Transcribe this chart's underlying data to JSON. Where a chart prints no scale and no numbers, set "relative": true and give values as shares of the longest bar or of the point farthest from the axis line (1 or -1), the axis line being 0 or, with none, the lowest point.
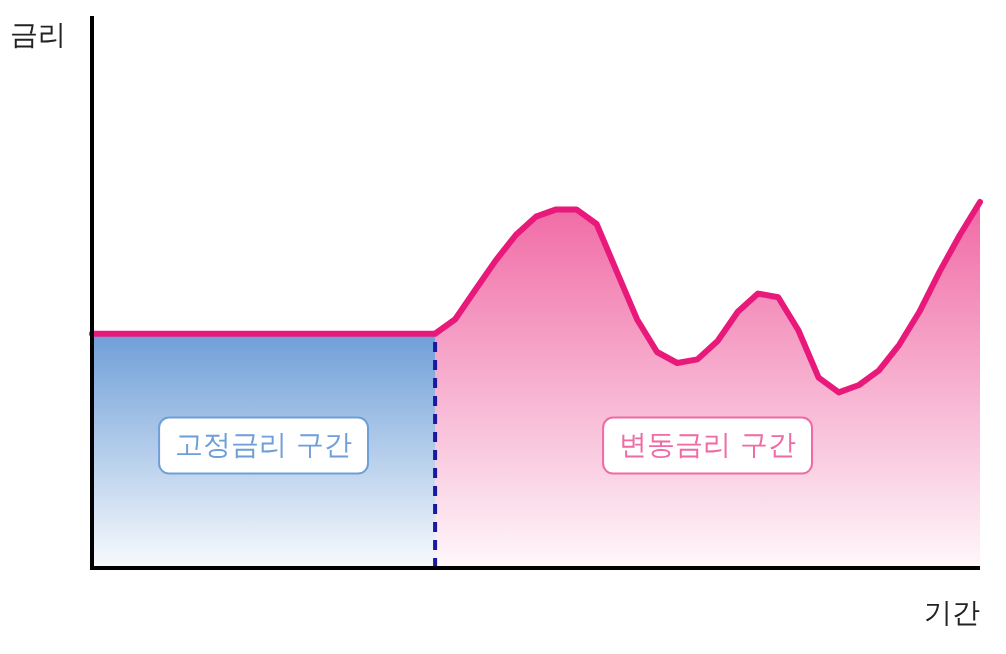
{
  "chart_data": {
    "type": "area",
    "relative": true,
    "annotations": [
      "금리"
    ],
    "xlabel": "기간",
    "categories": [
      null,
      null,
      null,
      null,
      null,
      null,
      null,
      null,
      null,
      null,
      null,
      null,
      null,
      null,
      null,
      null,
      null,
      null,
      null,
      null,
      null,
      null,
      null,
      null,
      null,
      null,
      null,
      null,
      null,
      null,
      null,
      null,
      null,
      null,
      null,
      null,
      null,
      null,
      null,
      null,
      null,
      null,
      null,
      null,
      null
    ],
    "series": [
      {
        "name": "고정금리 구간",
        "color": "#6f9fd8",
        "values": [
          0.64,
          0.64,
          0.64,
          0.64,
          0.64,
          0.64,
          0.64,
          0.64,
          0.64,
          0.64,
          0.64,
          0.64,
          0.64,
          0.64,
          0.64,
          0.64,
          0.64,
          0.64,
          null,
          null,
          null,
          null,
          null,
          null,
          null,
          null,
          null,
          null,
          null,
          null,
          null,
          null,
          null,
          null,
          null,
          null,
          null,
          null,
          null,
          null,
          null,
          null,
          null,
          null,
          null
        ]
      },
      {
        "name": "변동금리 구간",
        "color": "#f06aa5",
        "values": [
          null,
          null,
          null,
          null,
          null,
          null,
          null,
          null,
          null,
          null,
          null,
          null,
          null,
          null,
          null,
          null,
          null,
          0.64,
          0.68,
          0.76,
          0.84,
          0.91,
          0.96,
          0.98,
          0.98,
          0.94,
          0.81,
          0.68,
          0.59,
          0.56,
          0.57,
          0.62,
          0.7,
          0.75,
          0.74,
          0.65,
          0.52,
          0.48,
          0.5,
          0.54,
          0.61,
          0.7,
          0.81,
          0.91,
          1
        ]
      },
      {
        "type": "line",
        "color": "#e8197a",
        "values": [
          0.64,
          0.64,
          0.64,
          0.64,
          0.64,
          0.64,
          0.64,
          0.64,
          0.64,
          0.64,
          0.64,
          0.64,
          0.64,
          0.64,
          0.64,
          0.64,
          0.64,
          0.64,
          0.68,
          0.76,
          0.84,
          0.91,
          0.96,
          0.98,
          0.98,
          0.94,
          0.81,
          0.68,
          0.59,
          0.56,
          0.57,
          0.62,
          0.7,
          0.75,
          0.74,
          0.65,
          0.52,
          0.48,
          0.5,
          0.54,
          0.61,
          0.7,
          0.81,
          0.91,
          1
        ]
      }
    ]
  }
}
